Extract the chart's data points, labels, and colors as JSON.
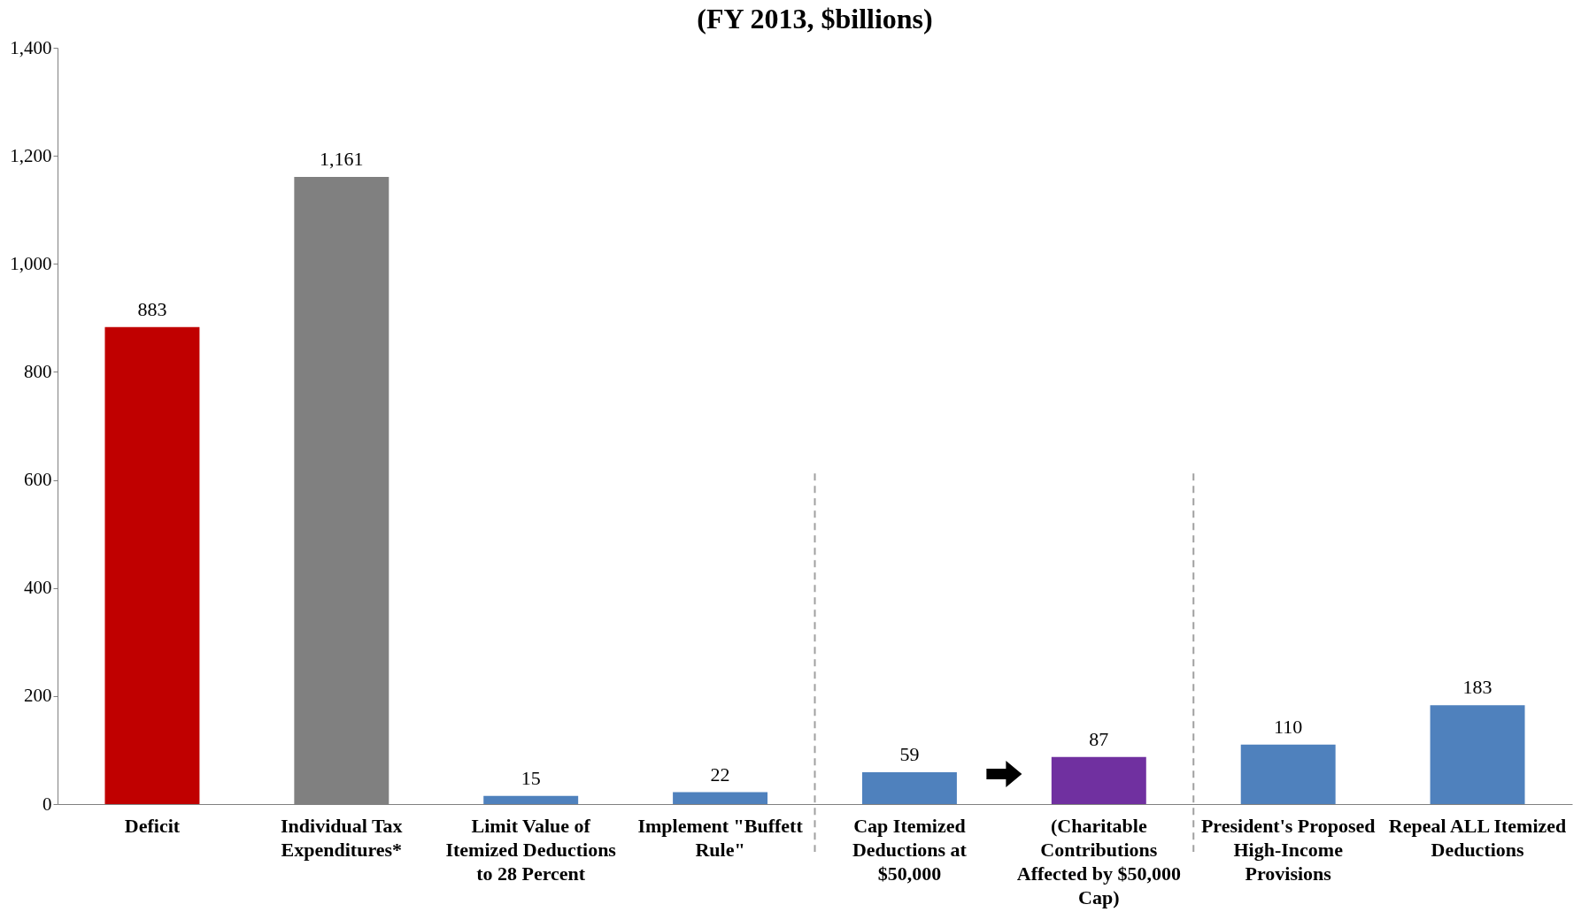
{
  "chart_data": {
    "type": "bar",
    "title": "(FY 2013, $billions)",
    "categories": [
      "Deficit",
      "Individual Tax Expenditures*",
      "Limit Value of Itemized Deductions to 28 Percent",
      "Implement \"Buffett Rule\"",
      "Cap Itemized Deductions at $50,000",
      "(Charitable Contributions Affected by $50,000 Cap)",
      "President's Proposed High-Income Provisions",
      "Repeal ALL Itemized Deductions"
    ],
    "values": [
      883,
      1161,
      15,
      22,
      59,
      87,
      110,
      183
    ],
    "value_labels": [
      "883",
      "1,161",
      "15",
      "22",
      "59",
      "87",
      "110",
      "183"
    ],
    "colors": [
      "#c00000",
      "#808080",
      "#4f81bd",
      "#4f81bd",
      "#4f81bd",
      "#7030a0",
      "#4f81bd",
      "#4f81bd"
    ],
    "ylim": [
      0,
      1400
    ],
    "yticks": [
      0,
      200,
      400,
      600,
      800,
      {
        "value": 1000,
        "label": "1,000"
      },
      {
        "value": 1200,
        "label": "1,200"
      },
      {
        "value": 1400,
        "label": "1,400"
      }
    ],
    "grid": false
  }
}
